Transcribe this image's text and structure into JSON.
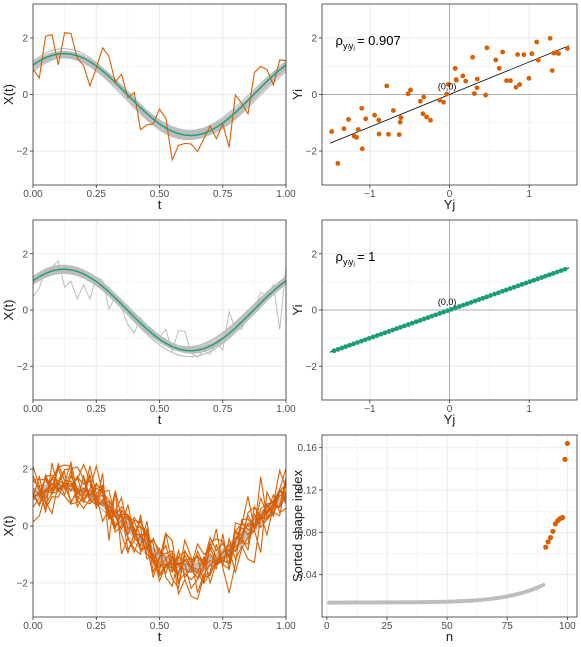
{
  "colors": {
    "orange": "#D95F02",
    "green": "#1B9E77",
    "grey": "#BDBDBD",
    "grid": "#EBEBEB",
    "frame": "#333333"
  },
  "chart_data": [
    {
      "id": "p1",
      "type": "line",
      "xlabel": "t",
      "ylabel": "X(t)",
      "xlim": [
        0,
        1
      ],
      "ylim": [
        -3.2,
        3.2
      ],
      "xticks": [
        "0.00",
        "0.25",
        "0.50",
        "0.75",
        "1.00"
      ],
      "yticks": [
        "-2",
        "0",
        "2"
      ],
      "grey_curves": 25,
      "noisy_grey_curves": 0,
      "orange_curves": 1,
      "mean_function": "sin(2*pi*t + 0.8)*1.45",
      "series": [
        {
          "color": "orange",
          "style": "noisy observation"
        },
        {
          "color": "green",
          "style": "mean"
        }
      ]
    },
    {
      "id": "p2",
      "type": "scatter",
      "xlabel": "Yj",
      "ylabel": "Yi",
      "xlim": [
        -1.6,
        1.6
      ],
      "ylim": [
        -3.2,
        3.2
      ],
      "xticks": [
        "-1",
        "0",
        "1"
      ],
      "yticks": [
        "-2",
        "0",
        "2"
      ],
      "annotation": "ρ",
      "annotation_sub": "yᵢyⱼ",
      "annotation_value": "= 0.907",
      "origin_label": "(0,0)",
      "color": "orange",
      "points": 60,
      "correlation": 0.907
    },
    {
      "id": "p3",
      "type": "line",
      "xlabel": "t",
      "ylabel": "X(t)",
      "xlim": [
        0,
        1
      ],
      "ylim": [
        -3.2,
        3.2
      ],
      "xticks": [
        "0.00",
        "0.25",
        "0.50",
        "0.75",
        "1.00"
      ],
      "yticks": [
        "-2",
        "0",
        "2"
      ],
      "grey_curves": 25,
      "noisy_grey_curves": 1,
      "orange_curves": 0,
      "series": [
        {
          "color": "green",
          "style": "mean"
        }
      ]
    },
    {
      "id": "p4",
      "type": "scatter",
      "xlabel": "Yj",
      "ylabel": "Yi",
      "xlim": [
        -1.6,
        1.6
      ],
      "ylim": [
        -3.2,
        3.2
      ],
      "xticks": [
        "-1",
        "0",
        "1"
      ],
      "yticks": [
        "-2",
        "0",
        "2"
      ],
      "annotation": "ρ",
      "annotation_sub": "yᵢyⱼ",
      "annotation_value": "= 1",
      "origin_label": "(0,0)",
      "color": "green",
      "points": 60,
      "correlation": 1
    },
    {
      "id": "p5",
      "type": "line",
      "xlabel": "t",
      "ylabel": "X(t)",
      "xlim": [
        0,
        1
      ],
      "ylim": [
        -3.2,
        3.2
      ],
      "xticks": [
        "0.00",
        "0.25",
        "0.50",
        "0.75",
        "1.00"
      ],
      "yticks": [
        "-2",
        "0",
        "2"
      ],
      "grey_curves": 20,
      "noisy_grey_curves": 0,
      "orange_curves": 12
    },
    {
      "id": "p6",
      "type": "scatter",
      "xlabel": "n",
      "ylabel": "Sorted shape index",
      "xlim": [
        -2,
        104
      ],
      "ylim": [
        0.0,
        0.172
      ],
      "xticks": [
        "0",
        "25",
        "50",
        "75",
        "100"
      ],
      "yticks": [
        "0.04",
        "0.08",
        "0.12",
        "0.16"
      ],
      "normal_points": 90,
      "outlier_points": 10,
      "outlier_values": [
        0.066,
        0.071,
        0.075,
        0.081,
        0.088,
        0.091,
        0.093,
        0.094,
        0.149,
        0.164
      ],
      "colors": [
        "grey",
        "orange"
      ]
    }
  ]
}
